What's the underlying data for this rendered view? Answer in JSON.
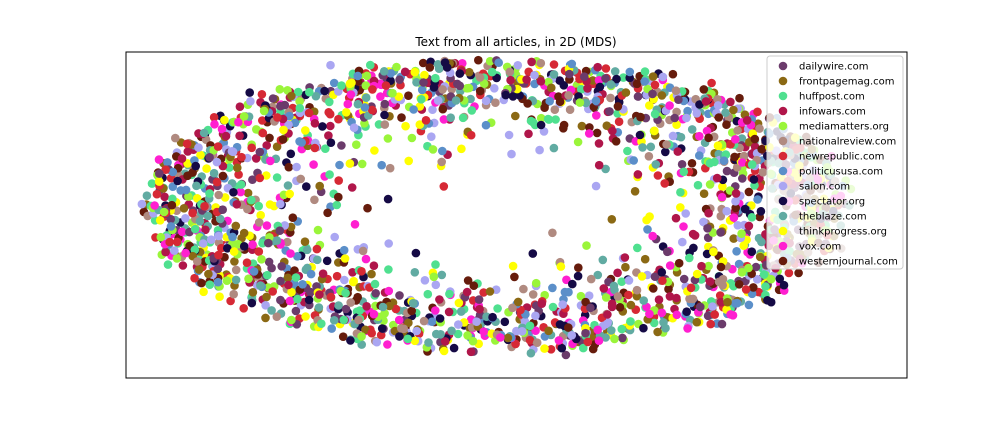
{
  "chart_data": {
    "type": "scatter",
    "title": "Text from all articles, in 2D (MDS)",
    "xlabel": "",
    "ylabel": "",
    "axes_ticks": "none",
    "legend_position": "top-right",
    "series": [
      {
        "name": "dailywire.com",
        "color": "#6b3b6b"
      },
      {
        "name": "frontpagemag.com",
        "color": "#8b6914"
      },
      {
        "name": "huffpost.com",
        "color": "#4fe08f"
      },
      {
        "name": "infowars.com",
        "color": "#b0164a"
      },
      {
        "name": "mediamatters.org",
        "color": "#9af53a"
      },
      {
        "name": "nationalreview.com",
        "color": "#b08a80"
      },
      {
        "name": "newrepublic.com",
        "color": "#d62935"
      },
      {
        "name": "politicususa.com",
        "color": "#5b8fc9"
      },
      {
        "name": "salon.com",
        "color": "#aaa6f2"
      },
      {
        "name": "spectator.org",
        "color": "#150a45"
      },
      {
        "name": "theblaze.com",
        "color": "#61aba2"
      },
      {
        "name": "thinkprogress.org",
        "color": "#ffff00"
      },
      {
        "name": "vox.com",
        "color": "#ff1fd0"
      },
      {
        "name": "westernjournal.com",
        "color": "#661c0c"
      }
    ]
  }
}
